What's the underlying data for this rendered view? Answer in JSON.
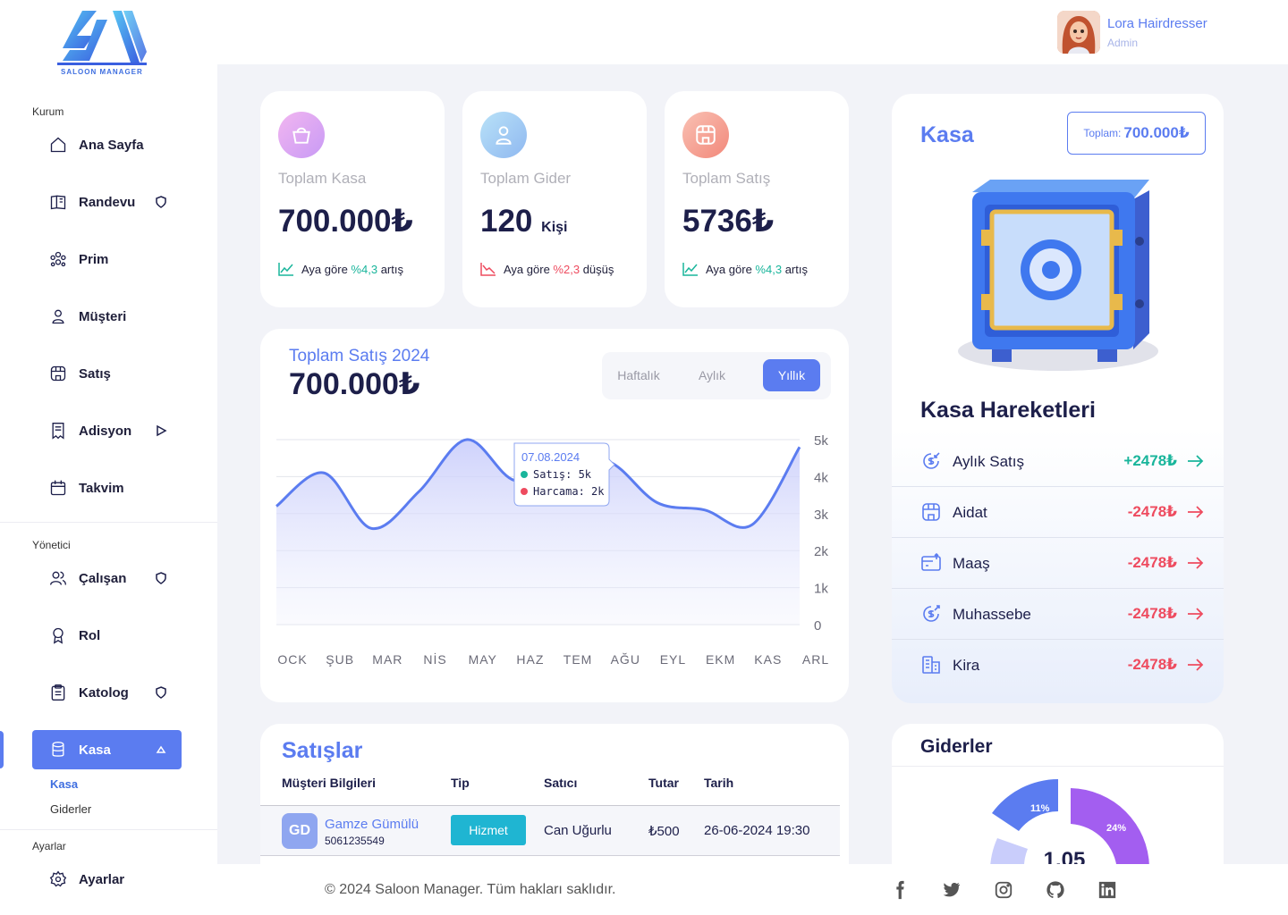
{
  "brand": {
    "logo_text": "SALOON MANAGER"
  },
  "profile": {
    "name": "Lora Hairdresser",
    "role": "Admin"
  },
  "sidebar": {
    "section_kurum": "Kurum",
    "section_yonetici": "Yönetici",
    "section_ayarlar": "Ayarlar",
    "items": [
      {
        "label": "Ana Sayfa",
        "icon": "home-icon"
      },
      {
        "label": "Randevu",
        "icon": "book-icon"
      },
      {
        "label": "Prim",
        "icon": "users-group-icon"
      },
      {
        "label": "Müşteri",
        "icon": "user-icon"
      },
      {
        "label": "Satış",
        "icon": "store-icon"
      },
      {
        "label": "Adisyon",
        "icon": "receipt-icon"
      },
      {
        "label": "Takvim",
        "icon": "calendar-icon"
      },
      {
        "label": "Çalışan",
        "icon": "users-icon"
      },
      {
        "label": "Rol",
        "icon": "award-icon"
      },
      {
        "label": "Katolog",
        "icon": "clipboard-icon"
      },
      {
        "label": "Kasa",
        "icon": "database-icon"
      },
      {
        "label": "Ayarlar",
        "icon": "gear-icon"
      }
    ],
    "sub_items": [
      "Kasa",
      "Giderler"
    ]
  },
  "stats": [
    {
      "title": "Toplam Kasa",
      "value": "700.000₺",
      "unit": "",
      "trend_prefix": "Aya göre",
      "trend_value": "%4,3",
      "trend_suffix": "artış",
      "trend": "up"
    },
    {
      "title": "Toplam Gider",
      "value": "120",
      "unit": "Kişi",
      "trend_prefix": "Aya göre",
      "trend_value": "%2,3",
      "trend_suffix": "düşüş",
      "trend": "down"
    },
    {
      "title": "Toplam Satış",
      "value": "5736₺",
      "unit": "",
      "trend_prefix": "Aya göre",
      "trend_value": "%4,3",
      "trend_suffix": "artış",
      "trend": "up"
    }
  ],
  "sales_chart": {
    "title": "Toplam Satış 2024",
    "total": "700.000₺",
    "tabs": [
      "Haftalık",
      "Aylık",
      "Yıllık"
    ],
    "active_tab": "Yıllık",
    "tooltip": {
      "date": "07.08.2024",
      "line1": "Satış: 5k",
      "line2": "Harcama: 2k"
    }
  },
  "chart_data": {
    "type": "area",
    "x": [
      "OCK",
      "ŞUB",
      "MAR",
      "NİS",
      "MAY",
      "HAZ",
      "TEM",
      "AĞU",
      "EYL",
      "EKM",
      "KAS",
      "ARL"
    ],
    "values": [
      3.2,
      4.1,
      2.6,
      3.6,
      5.0,
      3.9,
      4.3,
      4.4,
      3.3,
      3.1,
      2.7,
      4.8
    ],
    "yticks": [
      "0",
      "1k",
      "2k",
      "3k",
      "4k",
      "5k"
    ],
    "ylim": [
      0,
      5
    ],
    "title": "Toplam Satış 2024",
    "xlabel": "",
    "ylabel": "",
    "color": "#5b7cf0"
  },
  "kasa": {
    "title": "Kasa",
    "total_label": "Toplam:",
    "total_value": "700.000₺",
    "movements_title": "Kasa Hareketleri",
    "movements": [
      {
        "label": "Aylık Satış",
        "value": "+2478₺",
        "kind": "up"
      },
      {
        "label": "Aidat",
        "value": "-2478₺",
        "kind": "down"
      },
      {
        "label": "Maaş",
        "value": "-2478₺",
        "kind": "down"
      },
      {
        "label": "Muhassebe",
        "value": "-2478₺",
        "kind": "down"
      },
      {
        "label": "Kira",
        "value": "-2478₺",
        "kind": "down"
      }
    ]
  },
  "sales_table": {
    "title": "Satışlar",
    "columns": [
      "Müşteri Bilgileri",
      "Tip",
      "Satıcı",
      "Tutar",
      "Tarih"
    ],
    "rows": [
      {
        "initials": "GD",
        "name": "Gamze Gümülü",
        "phone": "5061235549",
        "type": "Hizmet",
        "seller": "Can Uğurlu",
        "amount": "₺500",
        "date": "26-06-2024 19:30"
      }
    ]
  },
  "expenses": {
    "title": "Giderler",
    "center_value": "1.05",
    "segments": [
      {
        "label": "11%",
        "value": 11,
        "color": "#5b7cf0"
      },
      {
        "label": "24%",
        "value": 24,
        "color": "#a35ef0"
      }
    ]
  },
  "footer": {
    "copyright": "© 2024 Saloon Manager. Tüm hakları saklıdır.",
    "socials": [
      "facebook-icon",
      "twitter-icon",
      "instagram-icon",
      "github-icon",
      "linkedin-icon"
    ]
  }
}
